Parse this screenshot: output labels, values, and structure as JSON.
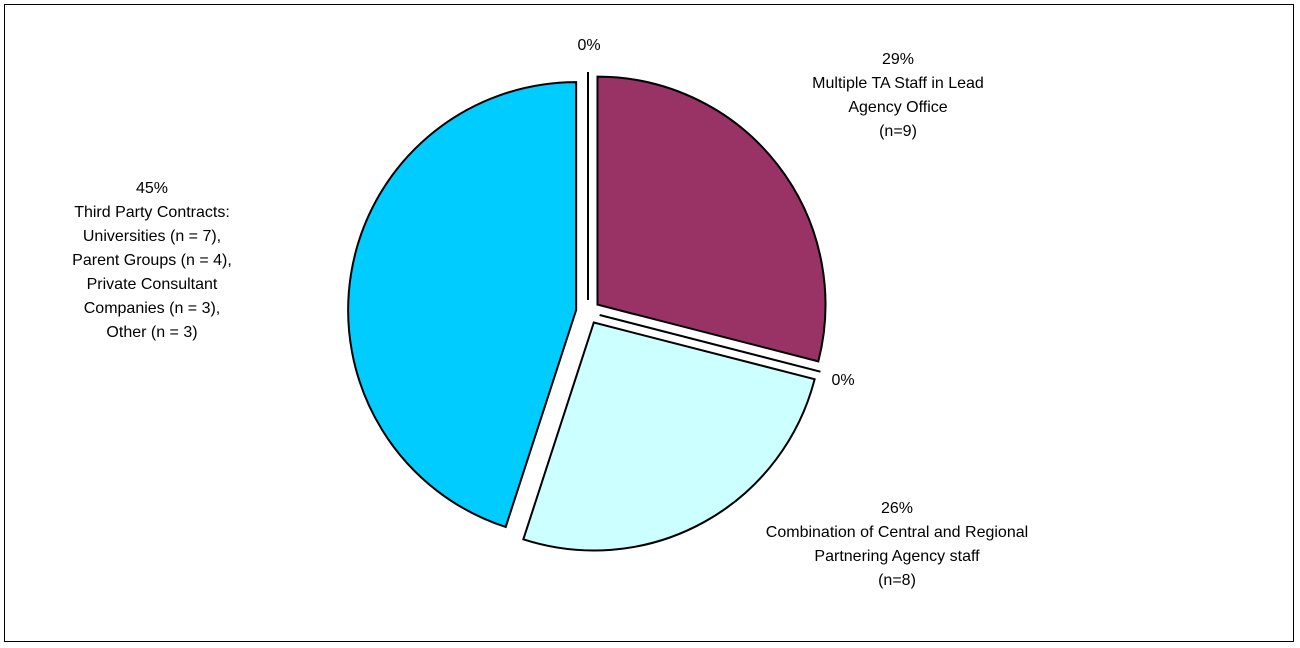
{
  "chart_data": {
    "type": "pie",
    "start_position": "top, clockwise",
    "slices": [
      {
        "value": 29,
        "percent_label": "29%",
        "label_lines": [
          "Multiple TA Staff in Lead",
          "Agency Office",
          "(n=9)"
        ],
        "color": "#993366",
        "exploded": true
      },
      {
        "value": 0,
        "percent_label": "0%",
        "label_lines": [],
        "color": "#ffffff",
        "exploded": true
      },
      {
        "value": 26,
        "percent_label": "26%",
        "label_lines": [
          "Combination of Central and Regional",
          "Partnering Agency staff",
          "(n=8)"
        ],
        "color": "#ccffff",
        "exploded": true
      },
      {
        "value": 45,
        "percent_label": "45%",
        "label_lines": [
          "Third Party Contracts:",
          "Universities (n = 7),",
          "Parent Groups (n = 4),",
          "Private Consultant",
          "Companies (n = 3),",
          "Other (n = 3)"
        ],
        "color": "#00ccff",
        "exploded": true
      },
      {
        "value": 0,
        "percent_label": "0%",
        "label_lines": [],
        "color": "#ffffff",
        "exploded": true
      }
    ]
  }
}
